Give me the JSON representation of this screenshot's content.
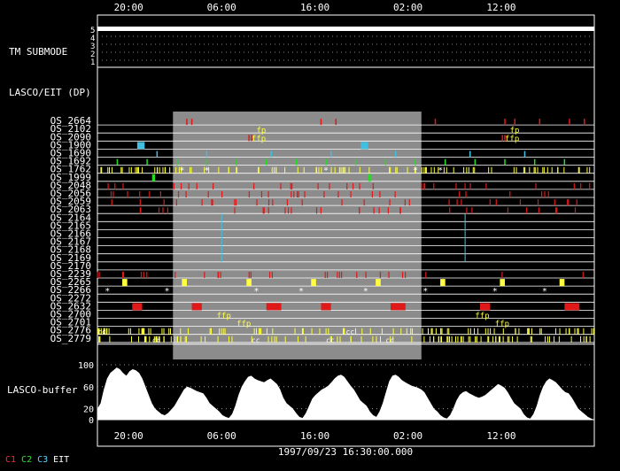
{
  "time_axis": {
    "ticks": [
      "20:00",
      "06:00",
      "16:00",
      "02:00",
      "12:00"
    ],
    "center_label": "1997/09/23 16:30:00.000"
  },
  "panels": {
    "submode_label": "TM SUBMODE",
    "submode_levels": [
      "5",
      "4",
      "3",
      "2",
      "1"
    ],
    "dp_label": "LASCO/EIT (DP)",
    "buffer_label": "LASCO-buffer",
    "buffer_ticks": [
      "100",
      "60",
      "20",
      "0"
    ]
  },
  "legend": [
    {
      "label": "C1",
      "color": "#ff2a2a"
    },
    {
      "label": "C2",
      "color": "#2ee02e"
    },
    {
      "label": "C3",
      "color": "#5ad8ff"
    },
    {
      "label": "EIT",
      "color": "#ffffff"
    }
  ],
  "colors": {
    "red": "#e01818",
    "yellow": "#ffff40",
    "green": "#22dd22",
    "cyan": "#40c0e0",
    "white": "#ffffff",
    "shade": "#8c8c8c"
  },
  "chart_data": {
    "type": "timeline",
    "rows": [
      {
        "name": "OS_2664",
        "color": "red",
        "events": [
          0.18,
          0.19,
          0.45,
          0.48,
          0.68,
          0.82,
          0.84,
          0.89,
          0.95,
          0.98
        ]
      },
      {
        "name": "OS_2102",
        "color": "yellow",
        "events": [],
        "labels": [
          {
            "t": 0.32,
            "text": "fp"
          },
          {
            "t": 0.83,
            "text": "fp"
          }
        ]
      },
      {
        "name": "OS_2090",
        "color": "red",
        "events": [
          0.305,
          0.31,
          0.815,
          0.82
        ],
        "labels": [
          {
            "t": 0.31,
            "text": "ffp"
          },
          {
            "t": 0.82,
            "text": "ffp"
          }
        ]
      },
      {
        "name": "OS_1900",
        "color": "cyan",
        "blocks": [
          [
            0.08,
            0.095
          ],
          [
            0.53,
            0.545
          ]
        ]
      },
      {
        "name": "OS_1690",
        "color": "cyan",
        "events": [
          0.12,
          0.22,
          0.35,
          0.47,
          0.6,
          0.75,
          0.86
        ]
      },
      {
        "name": "OS_1692",
        "color": "green",
        "events": [
          0.04,
          0.1,
          0.16,
          0.22,
          0.28,
          0.34,
          0.4,
          0.46,
          0.52,
          0.58,
          0.64,
          0.7,
          0.76,
          0.82,
          0.88,
          0.94
        ]
      },
      {
        "name": "OS_1762",
        "color": "yellow",
        "dense": true,
        "stars": [
          0.17,
          0.22,
          0.46,
          0.64,
          0.69
        ]
      },
      {
        "name": "OS_1999",
        "color": "green",
        "blocks": [
          [
            0.11,
            0.116
          ],
          [
            0.545,
            0.55
          ]
        ]
      },
      {
        "name": "OS_2048",
        "color": "red",
        "dense_sparse": true
      },
      {
        "name": "OS_2056",
        "color": "red",
        "dense_sparse": true
      },
      {
        "name": "OS_2059",
        "color": "red",
        "dense_sparse": true
      },
      {
        "name": "OS_2063",
        "color": "red",
        "dense_sparse": true
      },
      {
        "name": "OS_2164",
        "color": "cyan",
        "line": [
          0.25,
          0.74
        ]
      },
      {
        "name": "OS_2165",
        "color": "cyan",
        "line": [
          0.25,
          0.74
        ]
      },
      {
        "name": "OS_2166",
        "color": "cyan",
        "line": [
          0.25,
          0.74
        ]
      },
      {
        "name": "OS_2167",
        "color": "cyan",
        "line": [
          0.25,
          0.74
        ]
      },
      {
        "name": "OS_2168",
        "color": "cyan",
        "line": [
          0.25,
          0.74
        ]
      },
      {
        "name": "OS_2169",
        "color": "cyan",
        "line": [
          0.25,
          0.74
        ]
      },
      {
        "name": "OS_2170",
        "color": "cyan",
        "events": []
      },
      {
        "name": "OS_2239",
        "color": "red",
        "dense_sparse": true
      },
      {
        "name": "OS_2265",
        "color": "yellow",
        "blocks": [
          [
            0.05,
            0.06
          ],
          [
            0.17,
            0.18
          ],
          [
            0.3,
            0.31
          ],
          [
            0.43,
            0.44
          ],
          [
            0.56,
            0.57
          ],
          [
            0.69,
            0.7
          ],
          [
            0.81,
            0.82
          ],
          [
            0.93,
            0.94
          ]
        ]
      },
      {
        "name": "OS_2266",
        "color": "green",
        "stars": [
          0.02,
          0.14,
          0.32,
          0.41,
          0.54,
          0.66,
          0.8,
          0.9
        ]
      },
      {
        "name": "OS_2272",
        "color": "cyan",
        "events": []
      },
      {
        "name": "OS_2632",
        "color": "red",
        "blocks": [
          [
            0.07,
            0.09
          ],
          [
            0.19,
            0.21
          ],
          [
            0.34,
            0.37
          ],
          [
            0.45,
            0.47
          ],
          [
            0.59,
            0.62
          ],
          [
            0.77,
            0.79
          ],
          [
            0.94,
            0.97
          ]
        ]
      },
      {
        "name": "OS_2700",
        "color": "yellow",
        "labels": [
          {
            "t": 0.24,
            "text": "ffp"
          },
          {
            "t": 0.76,
            "text": "ffp"
          }
        ]
      },
      {
        "name": "OS_2701",
        "color": "yellow",
        "labels": [
          {
            "t": 0.28,
            "text": "ffp"
          },
          {
            "t": 0.8,
            "text": "ffp"
          }
        ]
      },
      {
        "name": "OS_2776",
        "color": "yellow",
        "dense": true,
        "cc": [
          0.0,
          0.5
        ]
      },
      {
        "name": "OS_2779",
        "color": "yellow",
        "dense": true,
        "cc": [
          0.11,
          0.31,
          0.46,
          0.58
        ]
      }
    ],
    "shaded_interval": [
      0.152,
      0.652
    ],
    "buffer_profile": [
      20,
      30,
      55,
      75,
      85,
      90,
      95,
      92,
      85,
      80,
      88,
      92,
      90,
      85,
      75,
      60,
      45,
      30,
      20,
      15,
      10,
      8,
      12,
      18,
      25,
      35,
      45,
      55,
      60,
      58,
      55,
      52,
      50,
      48,
      40,
      30,
      25,
      20,
      15,
      8,
      5,
      3,
      10,
      25,
      45,
      60,
      70,
      78,
      80,
      75,
      72,
      70,
      68,
      72,
      75,
      70,
      65,
      55,
      40,
      30,
      25,
      20,
      12,
      5,
      3,
      12,
      25,
      38,
      45,
      50,
      55,
      58,
      62,
      68,
      75,
      80,
      82,
      78,
      70,
      62,
      55,
      45,
      35,
      30,
      25,
      15,
      8,
      5,
      15,
      30,
      50,
      70,
      80,
      82,
      78,
      72,
      68,
      65,
      62,
      60,
      58,
      55,
      50,
      40,
      30,
      20,
      15,
      8,
      4,
      2,
      8,
      20,
      35,
      45,
      50,
      52,
      48,
      45,
      42,
      40,
      42,
      45,
      50,
      55,
      60,
      65,
      62,
      58,
      50,
      40,
      30,
      25,
      20,
      10,
      4,
      2,
      10,
      25,
      45,
      60,
      70,
      75,
      72,
      68,
      62,
      55,
      50,
      48,
      40,
      30,
      20,
      15,
      10,
      5,
      2,
      0
    ]
  }
}
